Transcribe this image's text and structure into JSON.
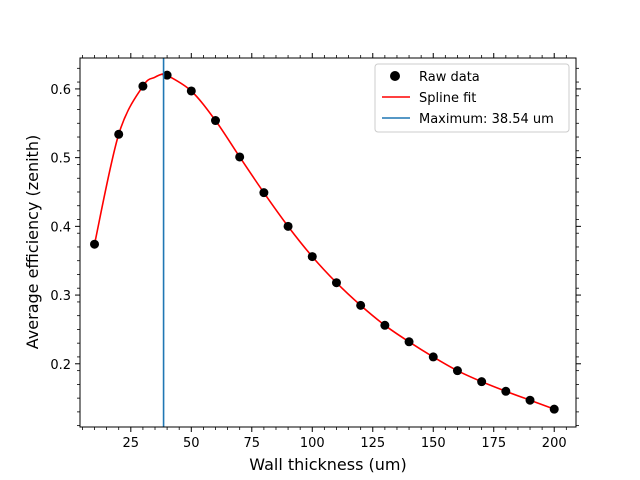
{
  "chart_data": {
    "type": "scatter",
    "title": "",
    "xlabel": "Wall thickness (um)",
    "ylabel": "Average efficiency (zenith)",
    "xlim": [
      4,
      209
    ],
    "ylim": [
      0.108,
      0.645
    ],
    "xticks": [
      25,
      50,
      75,
      100,
      125,
      150,
      175,
      200
    ],
    "yticks": [
      0.2,
      0.3,
      0.4,
      0.5,
      0.6
    ],
    "grid": false,
    "legend_position": "top-right",
    "series": [
      {
        "name": "Raw data",
        "kind": "scatter",
        "color": "#000000",
        "x": [
          10,
          20,
          30,
          40,
          50,
          60,
          70,
          80,
          90,
          100,
          110,
          120,
          130,
          140,
          150,
          160,
          170,
          180,
          190,
          200
        ],
        "y": [
          0.374,
          0.534,
          0.604,
          0.62,
          0.597,
          0.554,
          0.501,
          0.449,
          0.4,
          0.356,
          0.318,
          0.285,
          0.256,
          0.232,
          0.21,
          0.19,
          0.174,
          0.16,
          0.147,
          0.134
        ]
      },
      {
        "name": "Spline fit",
        "kind": "line",
        "color": "#ff0000",
        "x": [
          10,
          20,
          30,
          35,
          38.54,
          40,
          50,
          60,
          70,
          80,
          90,
          100,
          110,
          120,
          130,
          140,
          150,
          160,
          170,
          180,
          190,
          200
        ],
        "y": [
          0.374,
          0.534,
          0.604,
          0.617,
          0.622,
          0.62,
          0.597,
          0.554,
          0.501,
          0.449,
          0.4,
          0.356,
          0.318,
          0.285,
          0.256,
          0.232,
          0.21,
          0.19,
          0.174,
          0.16,
          0.147,
          0.134
        ]
      },
      {
        "name": "Maximum: 38.54 um",
        "kind": "vline",
        "color": "#1f77b4",
        "x": 38.54
      }
    ]
  }
}
